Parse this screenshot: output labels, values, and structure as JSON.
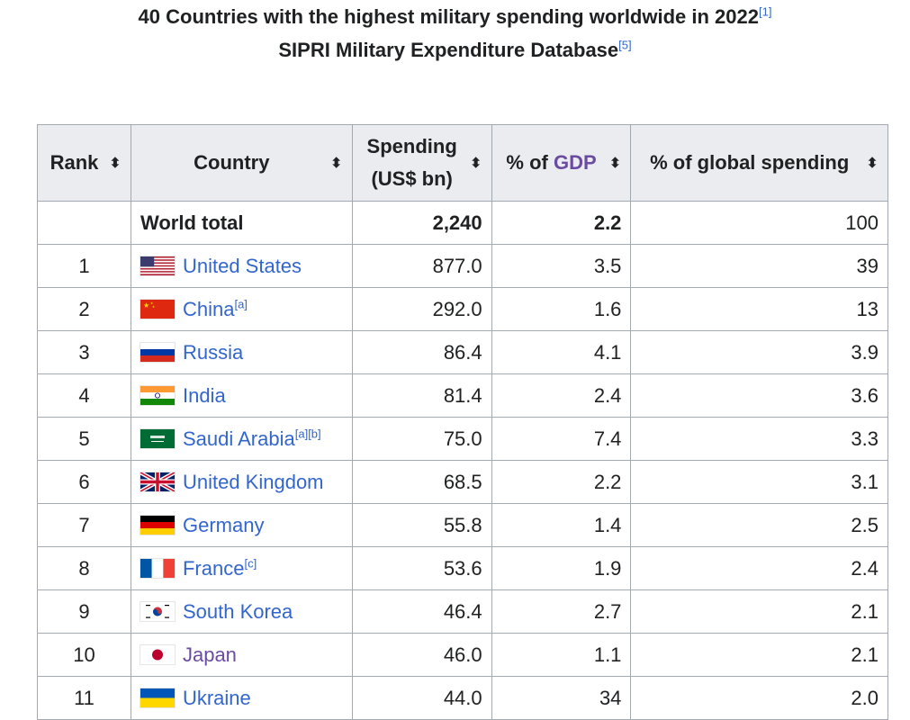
{
  "caption": {
    "line1": "40 Countries with the highest military spending worldwide in 2022",
    "line1_ref": "[1]",
    "line2": "SIPRI Military Expenditure Database",
    "line2_ref": "[5]"
  },
  "headers": {
    "rank": "Rank",
    "country": "Country",
    "spending_line1": "Spending",
    "spending_line2": "(US$ bn)",
    "gdp_prefix": "% of ",
    "gdp_link": "GDP",
    "global": "% of global spending",
    "sort_icon": "sort-arrows-icon"
  },
  "total": {
    "label": "World total",
    "spending": "2,240",
    "gdp": "2.2",
    "global": "100"
  },
  "rows": [
    {
      "rank": "1",
      "country": "United States",
      "refs": "",
      "spending": "877.0",
      "gdp": "3.5",
      "global": "39",
      "flag": "us"
    },
    {
      "rank": "2",
      "country": "China",
      "refs": "[a]",
      "spending": "292.0",
      "gdp": "1.6",
      "global": "13",
      "flag": "cn"
    },
    {
      "rank": "3",
      "country": "Russia",
      "refs": "",
      "spending": "86.4",
      "gdp": "4.1",
      "global": "3.9",
      "flag": "ru"
    },
    {
      "rank": "4",
      "country": "India",
      "refs": "",
      "spending": "81.4",
      "gdp": "2.4",
      "global": "3.6",
      "flag": "in"
    },
    {
      "rank": "5",
      "country": "Saudi Arabia",
      "refs": "[a][b]",
      "spending": "75.0",
      "gdp": "7.4",
      "global": "3.3",
      "flag": "sa"
    },
    {
      "rank": "6",
      "country": "United Kingdom",
      "refs": "",
      "spending": "68.5",
      "gdp": "2.2",
      "global": "3.1",
      "flag": "gb"
    },
    {
      "rank": "7",
      "country": "Germany",
      "refs": "",
      "spending": "55.8",
      "gdp": "1.4",
      "global": "2.5",
      "flag": "de"
    },
    {
      "rank": "8",
      "country": "France",
      "refs": "[c]",
      "spending": "53.6",
      "gdp": "1.9",
      "global": "2.4",
      "flag": "fr"
    },
    {
      "rank": "9",
      "country": "South Korea",
      "refs": "",
      "spending": "46.4",
      "gdp": "2.7",
      "global": "2.1",
      "flag": "kr"
    },
    {
      "rank": "10",
      "country": "Japan",
      "refs": "",
      "spending": "46.0",
      "gdp": "1.1",
      "global": "2.1",
      "flag": "jp",
      "visited": true
    },
    {
      "rank": "11",
      "country": "Ukraine",
      "refs": "",
      "spending": "44.0",
      "gdp": "34",
      "global": "2.0",
      "flag": "ua"
    }
  ],
  "colors": {
    "link": "#3366cc",
    "visited_link": "#6b4ba1",
    "header_bg": "#eaecf0",
    "border": "#a2a9b1"
  }
}
